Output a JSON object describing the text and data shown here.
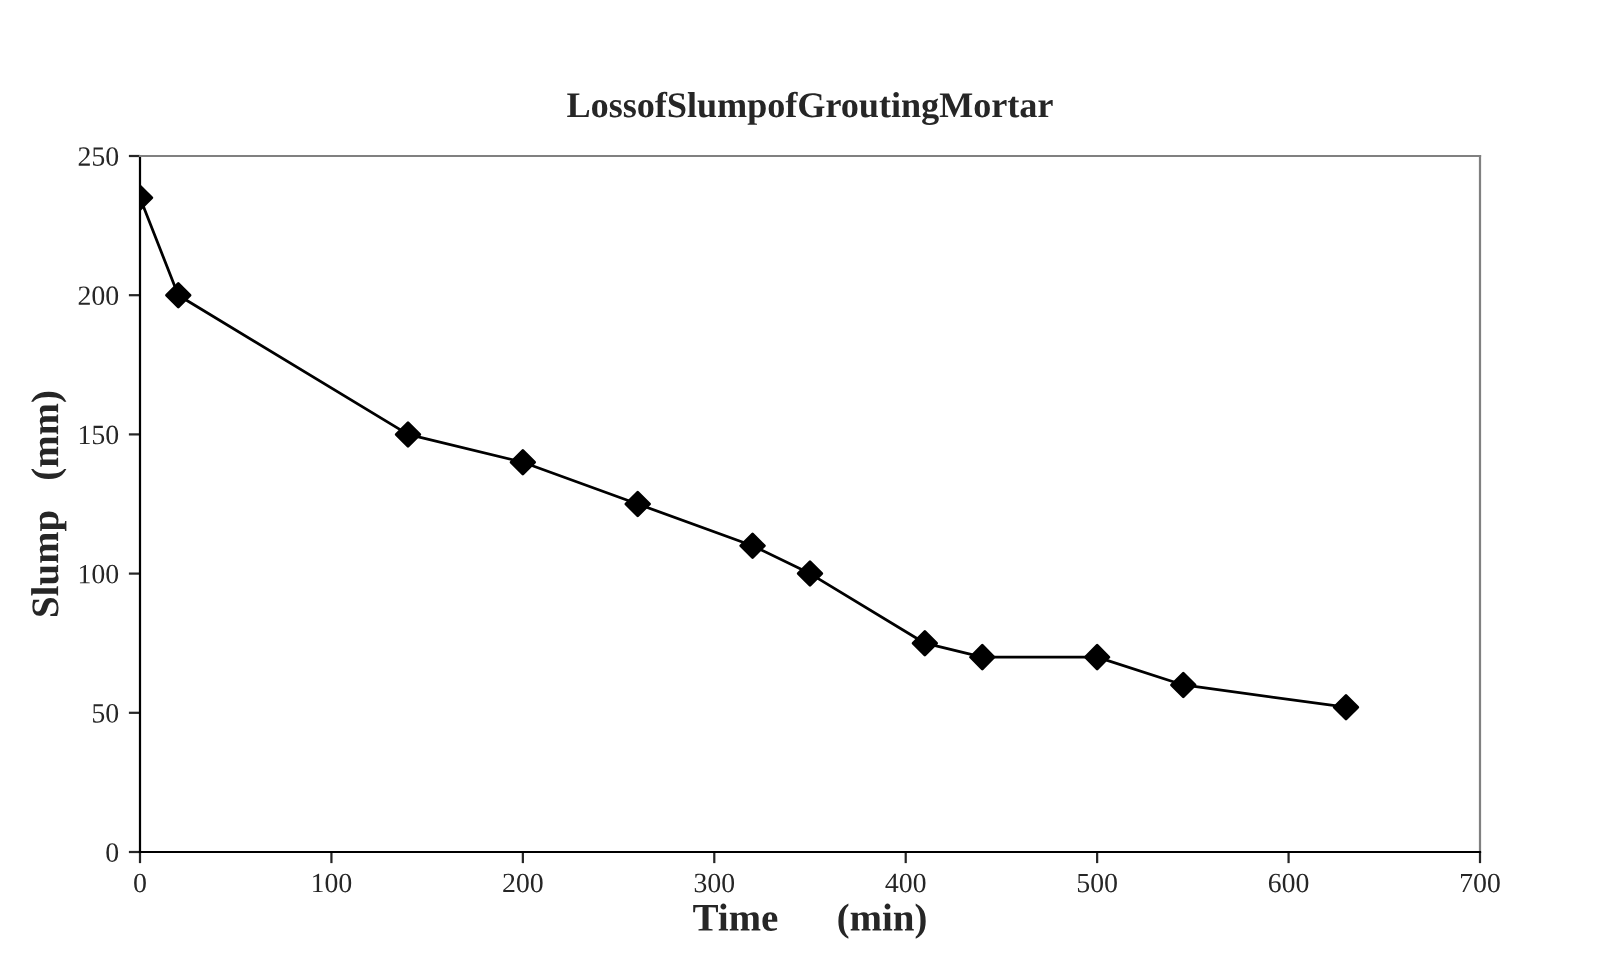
{
  "chart_data": {
    "type": "line",
    "title": "LossofSlumpofGroutingMortar",
    "xlabel": "Time      (min)",
    "ylabel": "Slump   (mm)",
    "x": [
      0,
      20,
      140,
      200,
      260,
      320,
      350,
      410,
      440,
      500,
      545,
      630
    ],
    "series": [
      {
        "color": "#000000",
        "values": [
          235,
          200,
          150,
          140,
          125,
          110,
          100,
          75,
          70,
          70,
          60,
          52
        ]
      }
    ],
    "xlim": [
      0,
      700
    ],
    "xticks": [
      0,
      100,
      200,
      300,
      400,
      500,
      600,
      700
    ],
    "ylim": [
      0,
      250
    ],
    "yticks": [
      0,
      50,
      100,
      150,
      200,
      250
    ],
    "grid": false,
    "legend": false,
    "marker": "diamond",
    "line_style": "solid"
  }
}
